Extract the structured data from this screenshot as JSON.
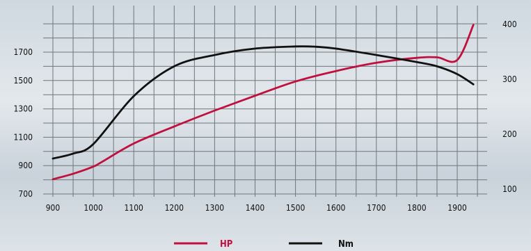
{
  "chart_data": {
    "type": "line",
    "title": "",
    "xlabel": "",
    "ylabel": "",
    "xlim": [
      900,
      1950
    ],
    "ylim_left": [
      700,
      1900
    ],
    "ylim_right": [
      100,
      420
    ],
    "x_ticks": [
      "900",
      "1000",
      "1100",
      "1200",
      "1300",
      "1400",
      "1500",
      "1600",
      "1700",
      "1800",
      "1900"
    ],
    "y_left_ticks": [
      "700",
      "900",
      "1100",
      "1300",
      "1500",
      "1700"
    ],
    "y_right_ticks": [
      "100",
      "200",
      "300",
      "400"
    ],
    "grid": true,
    "legend_position": "bottom",
    "series": [
      {
        "name": "HP",
        "axis": "right",
        "color": "#c0103f",
        "x": [
          900,
          950,
          1000,
          1020,
          1100,
          1200,
          1300,
          1400,
          1500,
          1600,
          1700,
          1800,
          1850,
          1900,
          1940
        ],
        "y": [
          118,
          128,
          141,
          149,
          183,
          214,
          243,
          270,
          296,
          315,
          330,
          339,
          340,
          335,
          399
        ]
      },
      {
        "name": "Nm",
        "axis": "left",
        "color": "#111111",
        "x": [
          900,
          950,
          1000,
          1100,
          1200,
          1300,
          1400,
          1500,
          1550,
          1600,
          1700,
          1800,
          1850,
          1900,
          1940
        ],
        "y": [
          950,
          985,
          1052,
          1390,
          1600,
          1680,
          1725,
          1740,
          1738,
          1725,
          1680,
          1630,
          1600,
          1545,
          1473
        ]
      }
    ]
  }
}
